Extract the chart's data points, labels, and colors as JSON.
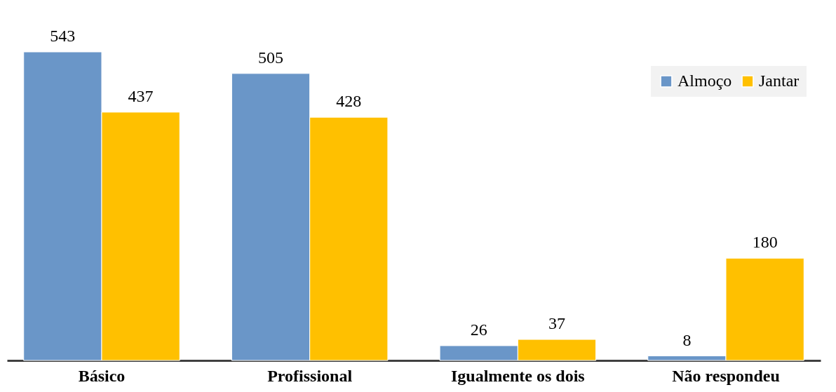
{
  "chart_data": {
    "type": "bar",
    "categories": [
      "Básico",
      "Profissional",
      "Igualmente os dois",
      "Não respondeu"
    ],
    "series": [
      {
        "name": "Almoço",
        "color": "#6a96c8",
        "values": [
          543,
          505,
          26,
          8
        ]
      },
      {
        "name": "Jantar",
        "color": "#ffc000",
        "values": [
          437,
          428,
          37,
          180
        ]
      }
    ],
    "data_labels": true,
    "legend": "top right"
  }
}
